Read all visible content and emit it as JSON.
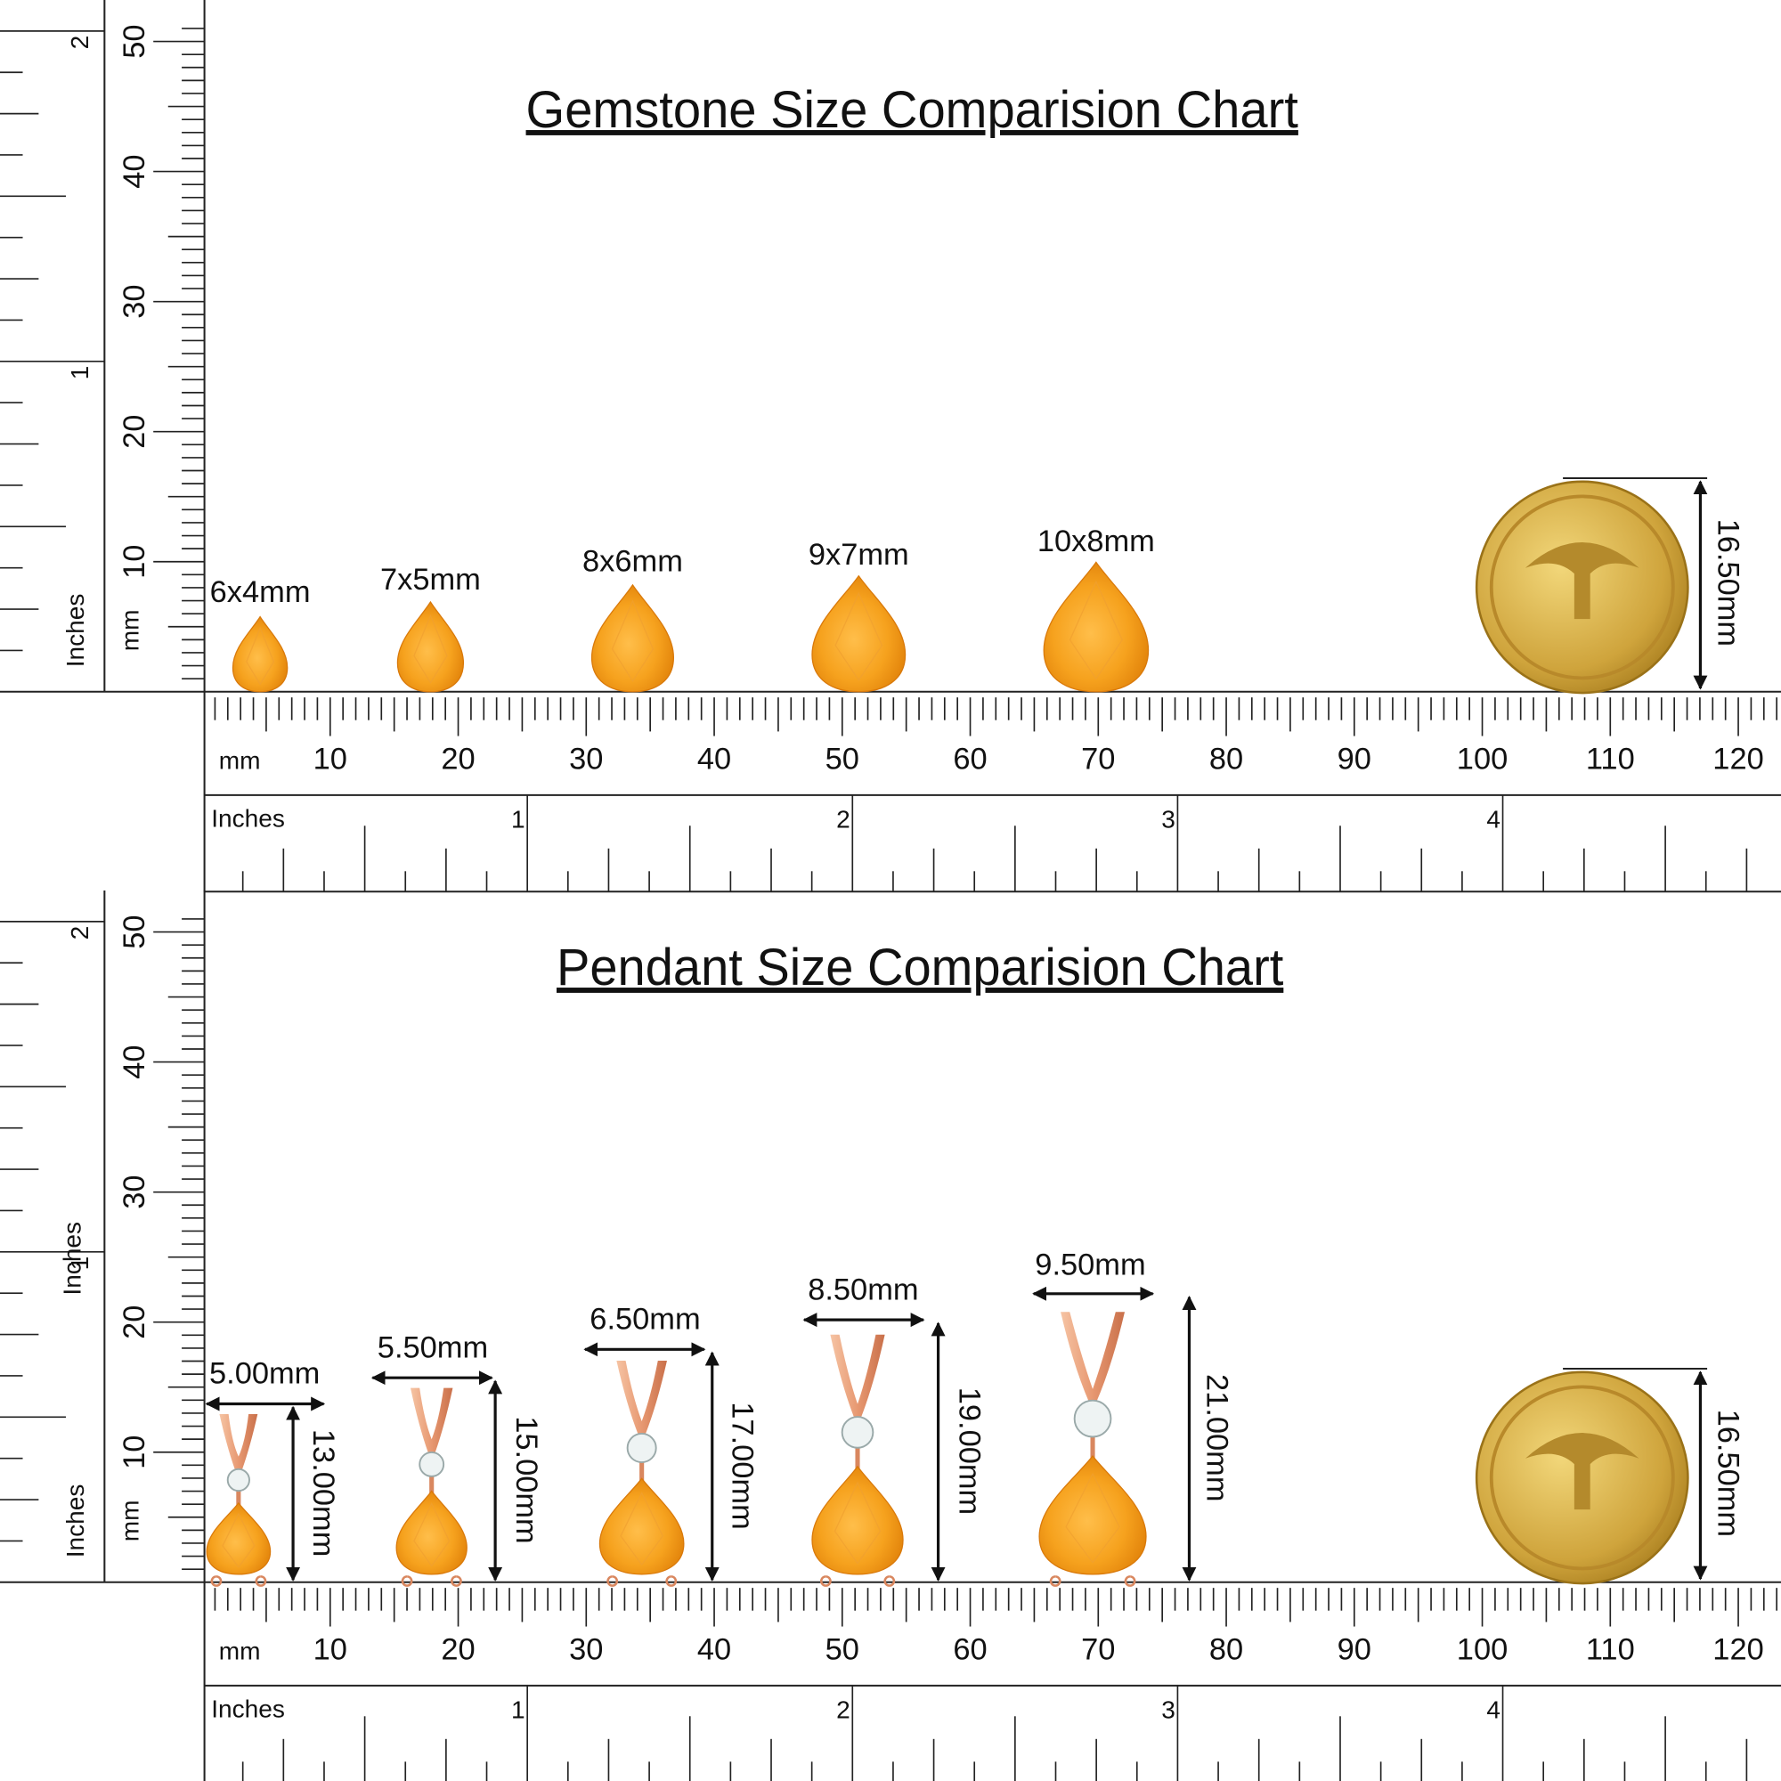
{
  "gemstone_chart": {
    "title": "Gemstone Size Comparision Chart",
    "gem_sizes": [
      "6x4mm",
      "7x5mm",
      "8x6mm",
      "9x7mm",
      "10x8mm"
    ],
    "coin_diameter": "16.50mm"
  },
  "pendant_chart": {
    "title": "Pendant Size Comparision Chart",
    "widths": [
      "5.00mm",
      "5.50mm",
      "6.50mm",
      "8.50mm",
      "9.50mm"
    ],
    "heights": [
      "13.00mm",
      "15.00mm",
      "17.00mm",
      "19.00mm",
      "21.00mm"
    ],
    "coin_diameter": "16.50mm"
  },
  "ruler": {
    "mm_label": "mm",
    "inch_label": "Inches",
    "mm_numbers": [
      10,
      20,
      30,
      40,
      50,
      60,
      70,
      80,
      90,
      100,
      110,
      120
    ],
    "inch_numbers": [
      1,
      2,
      3,
      4
    ],
    "side_mm_numbers": [
      10,
      20,
      30,
      40,
      50
    ],
    "side_inch_numbers": [
      1,
      2
    ]
  }
}
